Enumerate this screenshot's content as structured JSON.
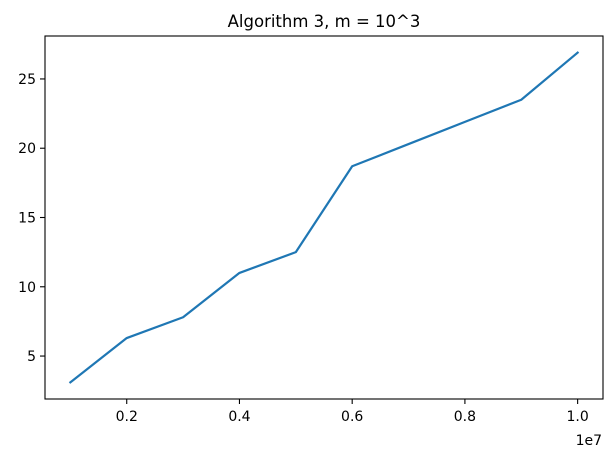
{
  "chart_data": {
    "type": "line",
    "title": "Algorithm 3, m = 10^3",
    "xlabel": "",
    "ylabel": "",
    "x_offset_label": "1e7",
    "x_scale": 10000000,
    "x": [
      1000000,
      2000000,
      3000000,
      4000000,
      5000000,
      6000000,
      7000000,
      8000000,
      9000000,
      10000000
    ],
    "series": [
      {
        "color": "#1f77b4",
        "values": [
          3.1,
          6.3,
          7.8,
          11.0,
          12.5,
          18.7,
          20.3,
          21.9,
          23.5,
          26.9
        ]
      }
    ],
    "xlim": [
      550000,
      10450000
    ],
    "ylim": [
      1.9,
      28.1
    ],
    "xticks": [
      2000000,
      4000000,
      6000000,
      8000000,
      10000000
    ],
    "xtick_labels": [
      "0.2",
      "0.4",
      "0.6",
      "0.8",
      "1.0"
    ],
    "yticks": [
      5,
      10,
      15,
      20,
      25
    ],
    "ytick_labels": [
      "5",
      "10",
      "15",
      "20",
      "25"
    ],
    "grid": false
  }
}
